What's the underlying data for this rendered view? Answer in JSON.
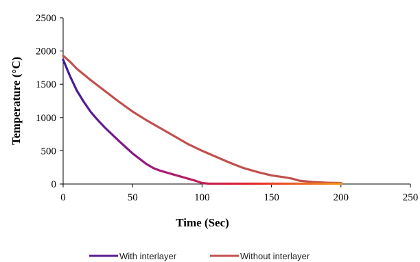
{
  "chart_data": {
    "type": "line",
    "title": "",
    "xlabel": "Time (Sec)",
    "ylabel": "Temperature (°C)",
    "xlim": [
      0,
      250
    ],
    "ylim": [
      0,
      2500
    ],
    "xticks": [
      0,
      50,
      100,
      150,
      200,
      250
    ],
    "yticks": [
      0,
      500,
      1000,
      1500,
      2000,
      2500
    ],
    "grid": false,
    "legend_position": "bottom",
    "series": [
      {
        "name": "With interlayer",
        "color": "#5b1a8e",
        "gradient_colors": [
          "#3d1a9b",
          "#a0197a",
          "#e3262e",
          "#f39a16"
        ],
        "x": [
          0,
          5,
          10,
          15,
          20,
          25,
          30,
          40,
          50,
          60,
          65,
          70,
          75,
          80,
          85,
          90,
          95,
          100,
          105,
          110,
          120,
          150,
          180,
          200
        ],
        "y": [
          1870,
          1620,
          1400,
          1230,
          1080,
          960,
          850,
          650,
          460,
          300,
          240,
          200,
          170,
          140,
          110,
          80,
          50,
          15,
          5,
          5,
          5,
          5,
          5,
          5
        ]
      },
      {
        "name": "Without interlayer",
        "color": "#c0504d",
        "x": [
          0,
          5,
          10,
          20,
          30,
          40,
          50,
          60,
          70,
          80,
          90,
          100,
          110,
          120,
          130,
          140,
          150,
          160,
          165,
          170,
          175,
          180,
          185,
          190,
          195,
          200
        ],
        "y": [
          1930,
          1840,
          1730,
          1560,
          1400,
          1240,
          1090,
          960,
          840,
          720,
          600,
          500,
          410,
          320,
          240,
          180,
          130,
          100,
          80,
          50,
          40,
          30,
          25,
          20,
          18,
          15
        ]
      }
    ]
  }
}
